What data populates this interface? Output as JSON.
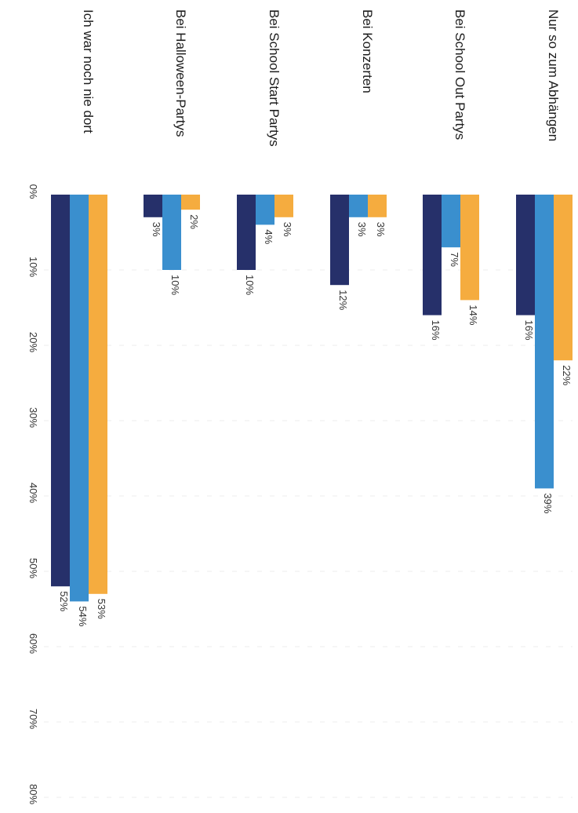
{
  "chart_data": {
    "type": "bar",
    "orientation": "horizontal",
    "categories": [
      "Nur so zum Abhängen",
      "Bei School Out Partys",
      "Bei Konzerten",
      "Bei School Start Partys",
      "Bei Halloween-Partys",
      "Ich war noch nie dort"
    ],
    "series": [
      {
        "color": "#f5ac3f",
        "values": [
          22,
          14,
          3,
          3,
          2,
          53
        ]
      },
      {
        "color": "#3a8fce",
        "values": [
          39,
          7,
          3,
          4,
          10,
          54
        ]
      },
      {
        "color": "#26306a",
        "values": [
          16,
          16,
          12,
          10,
          3,
          52
        ]
      }
    ],
    "value_labels": [
      [
        "22%",
        "14%",
        "3%",
        "3%",
        "2%",
        "53%"
      ],
      [
        "39%",
        "7%",
        "3%",
        "4%",
        "10%",
        "54%"
      ],
      [
        "16%",
        "16%",
        "12%",
        "10%",
        "3%",
        "52%"
      ]
    ],
    "x_ticks": [
      "0%",
      "10%",
      "20%",
      "30%",
      "40%",
      "50%",
      "60%",
      "70%",
      "80%"
    ],
    "xlim": [
      0,
      80
    ],
    "grid": true,
    "legend": "none"
  }
}
